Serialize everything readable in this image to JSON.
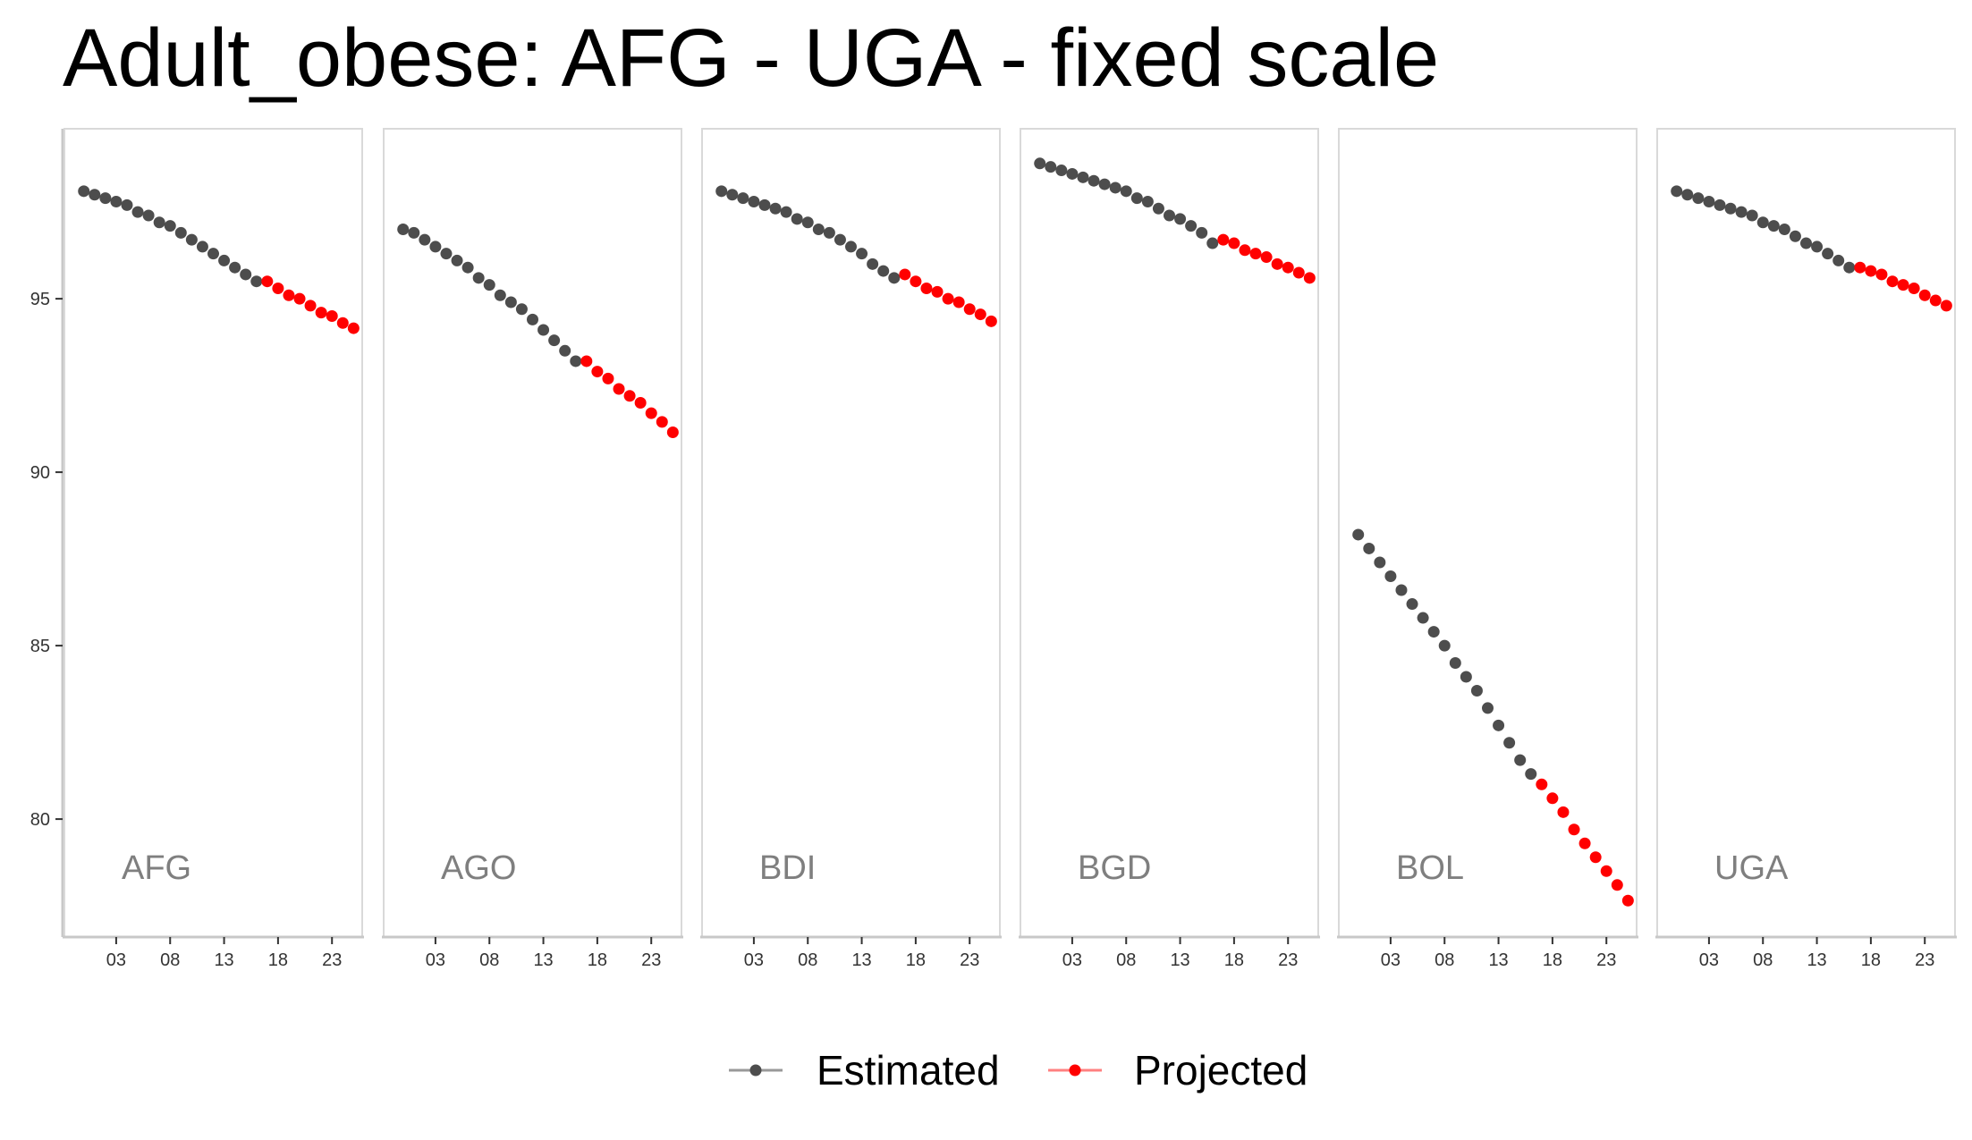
{
  "chart_data": {
    "type": "scatter",
    "title": "Adult_obese: AFG - UGA - fixed scale",
    "xlabel": "",
    "ylabel": "",
    "x_ticks": [
      3,
      8,
      13,
      18,
      23
    ],
    "x_tick_labels": [
      "03",
      "08",
      "13",
      "18",
      "23"
    ],
    "y_ticks": [
      80,
      85,
      90,
      95
    ],
    "y_tick_labels": [
      "80",
      "85",
      "90",
      "95"
    ],
    "xlim": [
      -1.8,
      25.8
    ],
    "ylim": [
      76.6,
      99.9
    ],
    "grid": false,
    "legend_position": "bottom",
    "legend": [
      {
        "name": "Estimated",
        "color": "#4d4d4d"
      },
      {
        "name": "Projected",
        "color": "#ff0000"
      }
    ],
    "x": [
      0,
      1,
      2,
      3,
      4,
      5,
      6,
      7,
      8,
      9,
      10,
      11,
      12,
      13,
      14,
      15,
      16,
      17,
      18,
      19,
      20,
      21,
      22,
      23,
      24,
      25
    ],
    "projection_start_index": 17,
    "panels": [
      {
        "name": "AFG",
        "values": [
          98.1,
          98.0,
          97.9,
          97.8,
          97.7,
          97.5,
          97.4,
          97.2,
          97.1,
          96.9,
          96.7,
          96.5,
          96.3,
          96.1,
          95.9,
          95.7,
          95.5,
          95.5,
          95.3,
          95.1,
          95.0,
          94.8,
          94.6,
          94.5,
          94.3,
          94.15
        ]
      },
      {
        "name": "AGO",
        "values": [
          97.0,
          96.9,
          96.7,
          96.5,
          96.3,
          96.1,
          95.9,
          95.6,
          95.4,
          95.1,
          94.9,
          94.7,
          94.4,
          94.1,
          93.8,
          93.5,
          93.2,
          93.2,
          92.9,
          92.7,
          92.4,
          92.2,
          92.0,
          91.7,
          91.45,
          91.15
        ]
      },
      {
        "name": "BDI",
        "values": [
          98.1,
          98.0,
          97.9,
          97.8,
          97.7,
          97.6,
          97.5,
          97.3,
          97.2,
          97.0,
          96.9,
          96.7,
          96.5,
          96.3,
          96.0,
          95.8,
          95.6,
          95.7,
          95.5,
          95.3,
          95.2,
          95.0,
          94.9,
          94.7,
          94.55,
          94.35
        ]
      },
      {
        "name": "BGD",
        "values": [
          98.9,
          98.8,
          98.7,
          98.6,
          98.5,
          98.4,
          98.3,
          98.2,
          98.1,
          97.9,
          97.8,
          97.6,
          97.4,
          97.3,
          97.1,
          96.9,
          96.6,
          96.7,
          96.6,
          96.4,
          96.3,
          96.2,
          96.0,
          95.9,
          95.75,
          95.6
        ]
      },
      {
        "name": "BOL",
        "values": [
          88.2,
          87.8,
          87.4,
          87.0,
          86.6,
          86.2,
          85.8,
          85.4,
          85.0,
          84.5,
          84.1,
          83.7,
          83.2,
          82.7,
          82.2,
          81.7,
          81.3,
          81.0,
          80.6,
          80.2,
          79.7,
          79.3,
          78.9,
          78.5,
          78.1,
          77.65
        ]
      },
      {
        "name": "UGA",
        "values": [
          98.1,
          98.0,
          97.9,
          97.8,
          97.7,
          97.6,
          97.5,
          97.4,
          97.2,
          97.1,
          97.0,
          96.8,
          96.6,
          96.5,
          96.3,
          96.1,
          95.9,
          95.9,
          95.8,
          95.7,
          95.5,
          95.4,
          95.3,
          95.1,
          94.95,
          94.8
        ]
      }
    ]
  }
}
